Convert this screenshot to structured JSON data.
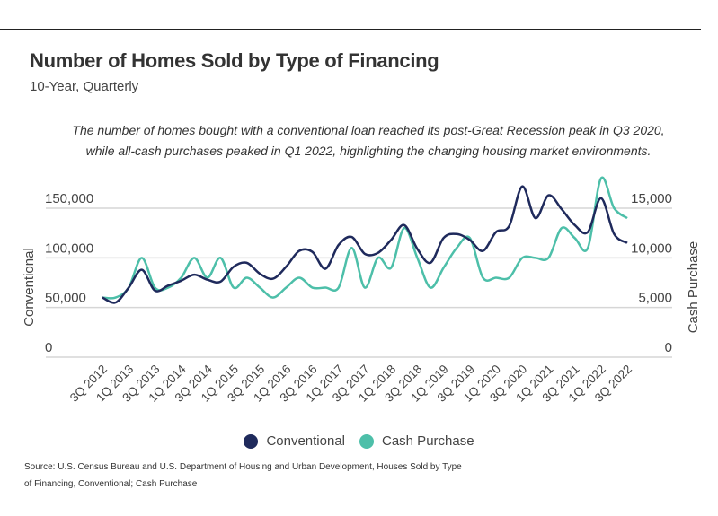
{
  "title": "Number of Homes Sold by Type of Financing",
  "subtitle": "10-Year, Quarterly",
  "annotation": "The number of homes bought with a conventional loan reached its post-Great Recession peak in Q3 2020, while all-cash purchases peaked in Q1 2022, highlighting the changing housing market environments.",
  "source_line1": "Source:  U.S. Census Bureau and U.S. Department of Housing and Urban Development, Houses Sold by Type",
  "source_line2": "of Financing, Conventional; Cash Purchase",
  "chart_data": {
    "type": "line",
    "grid": true,
    "legend_placement": "bottom",
    "colors": {
      "Conventional": "#1f2a5c",
      "Cash Purchase": "#4dbfa9"
    },
    "x_tick_labels": [
      "3Q 2012",
      "1Q 2013",
      "3Q 2013",
      "1Q 2014",
      "3Q 2014",
      "1Q 2015",
      "3Q 2015",
      "1Q 2016",
      "3Q 2016",
      "1Q 2017",
      "3Q 2017",
      "1Q 2018",
      "3Q 2018",
      "1Q 2019",
      "3Q 2019",
      "1Q 2020",
      "3Q 2020",
      "1Q 2021",
      "3Q 2021",
      "1Q 2022",
      "3Q 2022"
    ],
    "x_range": [
      "3Q 2012",
      "3Q 2022"
    ],
    "y_left": {
      "label": "Conventional",
      "range": [
        0,
        150000
      ],
      "ticks": [
        "0",
        "50,000",
        "100,000",
        "150,000"
      ]
    },
    "y_right": {
      "label": "Cash Purchase",
      "range": [
        0,
        15000
      ],
      "ticks": [
        "0",
        "5,000",
        "10,000",
        "15,000"
      ]
    },
    "series": [
      {
        "name": "Conventional",
        "axis": "left",
        "values": [
          60000,
          55000,
          70000,
          88000,
          67000,
          72000,
          77000,
          83000,
          78000,
          76000,
          91000,
          95000,
          84000,
          79000,
          91000,
          107000,
          106000,
          89000,
          113000,
          121000,
          104000,
          105000,
          118000,
          133000,
          109000,
          95000,
          120000,
          124000,
          118000,
          107000,
          126000,
          132000,
          172000,
          140000,
          163000,
          149000,
          133000,
          126000,
          160000,
          124000,
          115000
        ]
      },
      {
        "name": "Cash Purchase",
        "axis": "right",
        "values": [
          6000,
          6000,
          7000,
          10000,
          7000,
          7000,
          8000,
          10000,
          8000,
          10000,
          7000,
          8000,
          7000,
          6000,
          7000,
          8000,
          7000,
          7000,
          7000,
          11000,
          7000,
          10000,
          9000,
          13000,
          10000,
          7000,
          9000,
          11000,
          12000,
          8000,
          8000,
          8000,
          10000,
          10000,
          10000,
          13000,
          12000,
          11000,
          18000,
          15000,
          14000
        ]
      }
    ]
  }
}
